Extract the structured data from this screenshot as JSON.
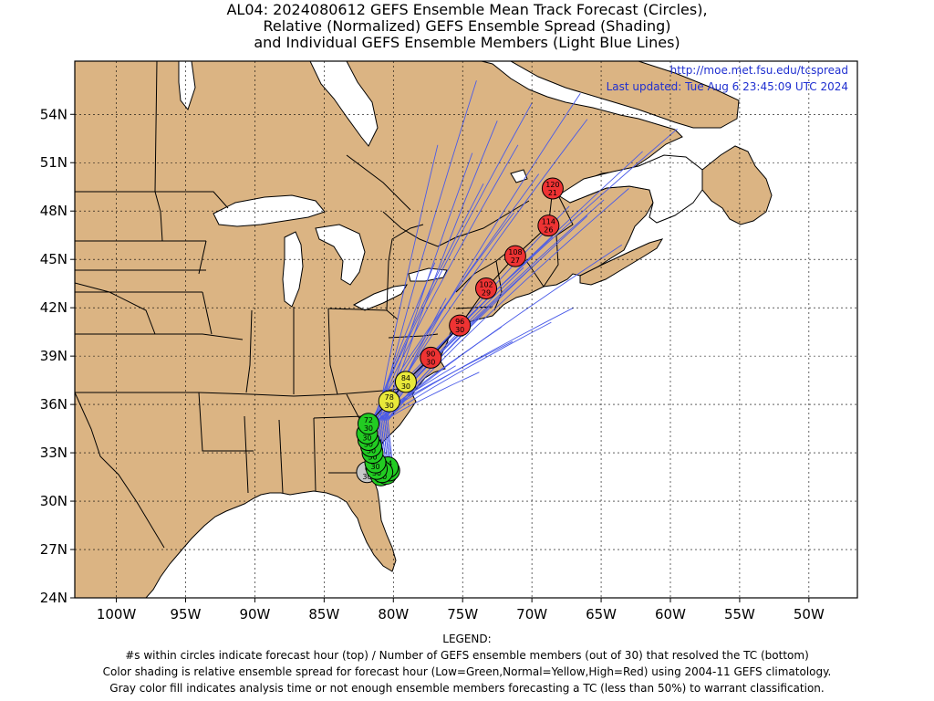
{
  "title": {
    "line1": "AL04: 2024080612 GEFS Ensemble Mean Track Forecast (Circles),",
    "line2": "Relative (Normalized) GEFS Ensemble Spread (Shading)",
    "line3": "and Individual GEFS Ensemble Members (Light Blue Lines)"
  },
  "credit": {
    "url": "http://moe.met.fsu.edu/tcspread",
    "updated": "Last updated: Tue Aug 6 23:45:09 UTC 2024"
  },
  "axes": {
    "x_ticks": [
      "100W",
      "95W",
      "90W",
      "85W",
      "80W",
      "75W",
      "70W",
      "65W",
      "60W",
      "55W",
      "50W"
    ],
    "y_ticks": [
      "54N",
      "51N",
      "48N",
      "45N",
      "42N",
      "39N",
      "36N",
      "33N",
      "30N",
      "27N",
      "24N"
    ],
    "lon_range": [
      -103,
      -46.5
    ],
    "lat_range": [
      24,
      57.3
    ]
  },
  "colors": {
    "land": "#dbb483",
    "ocean": "#ffffff",
    "members": "#4a5be8",
    "low": "#22cc22",
    "normal": "#e8e83a",
    "high": "#ee3333",
    "gray": "#c8c8c8"
  },
  "mean_track": [
    {
      "hour": "0",
      "members": "30",
      "lat": 31.8,
      "lon": -81.9,
      "spread": "gray"
    },
    {
      "hour": "6",
      "members": "30",
      "lat": 31.6,
      "lon": -80.9,
      "spread": "low"
    },
    {
      "hour": "12",
      "members": "30",
      "lat": 31.7,
      "lon": -80.5,
      "spread": "low"
    },
    {
      "hour": "18",
      "members": "30",
      "lat": 31.9,
      "lon": -80.3,
      "spread": "low"
    },
    {
      "hour": "24",
      "members": "30",
      "lat": 32.1,
      "lon": -80.4,
      "spread": "low"
    },
    {
      "hour": "30",
      "members": "30",
      "lat": 31.8,
      "lon": -80.8,
      "spread": "low"
    },
    {
      "hour": "36",
      "members": "30",
      "lat": 32.0,
      "lon": -81.2,
      "spread": "low"
    },
    {
      "hour": "42",
      "members": "30",
      "lat": 32.4,
      "lon": -81.3,
      "spread": "low"
    },
    {
      "hour": "48",
      "members": "30",
      "lat": 33.0,
      "lon": -81.5,
      "spread": "low"
    },
    {
      "hour": "54",
      "members": "30",
      "lat": 33.4,
      "lon": -81.6,
      "spread": "low"
    },
    {
      "hour": "60",
      "members": "30",
      "lat": 33.8,
      "lon": -81.8,
      "spread": "low"
    },
    {
      "hour": "66",
      "members": "30",
      "lat": 34.2,
      "lon": -81.9,
      "spread": "low"
    },
    {
      "hour": "72",
      "members": "30",
      "lat": 34.8,
      "lon": -81.8,
      "spread": "low"
    },
    {
      "hour": "78",
      "members": "30",
      "lat": 36.2,
      "lon": -80.3,
      "spread": "normal"
    },
    {
      "hour": "84",
      "members": "30",
      "lat": 37.4,
      "lon": -79.1,
      "spread": "normal"
    },
    {
      "hour": "90",
      "members": "30",
      "lat": 38.9,
      "lon": -77.3,
      "spread": "high"
    },
    {
      "hour": "96",
      "members": "30",
      "lat": 40.9,
      "lon": -75.2,
      "spread": "high"
    },
    {
      "hour": "102",
      "members": "29",
      "lat": 43.2,
      "lon": -73.3,
      "spread": "high"
    },
    {
      "hour": "108",
      "members": "27",
      "lat": 45.2,
      "lon": -71.2,
      "spread": "high"
    },
    {
      "hour": "114",
      "members": "26",
      "lat": 47.1,
      "lon": -68.8,
      "spread": "high"
    },
    {
      "hour": "120",
      "members": "21",
      "lat": 49.4,
      "lon": -68.5,
      "spread": "high"
    }
  ],
  "legend": {
    "heading": "LEGEND:",
    "line1": "#s within circles indicate forecast hour (top) / Number of GEFS ensemble members (out of 30) that resolved the TC (bottom)",
    "line2": "Color shading is relative ensemble spread for forecast hour (Low=Green,Normal=Yellow,High=Red) using 2004-11 GEFS climatology.",
    "line3": "Gray color fill indicates analysis time or not enough ensemble members forecasting a TC (less than 50%) to warrant classification."
  }
}
